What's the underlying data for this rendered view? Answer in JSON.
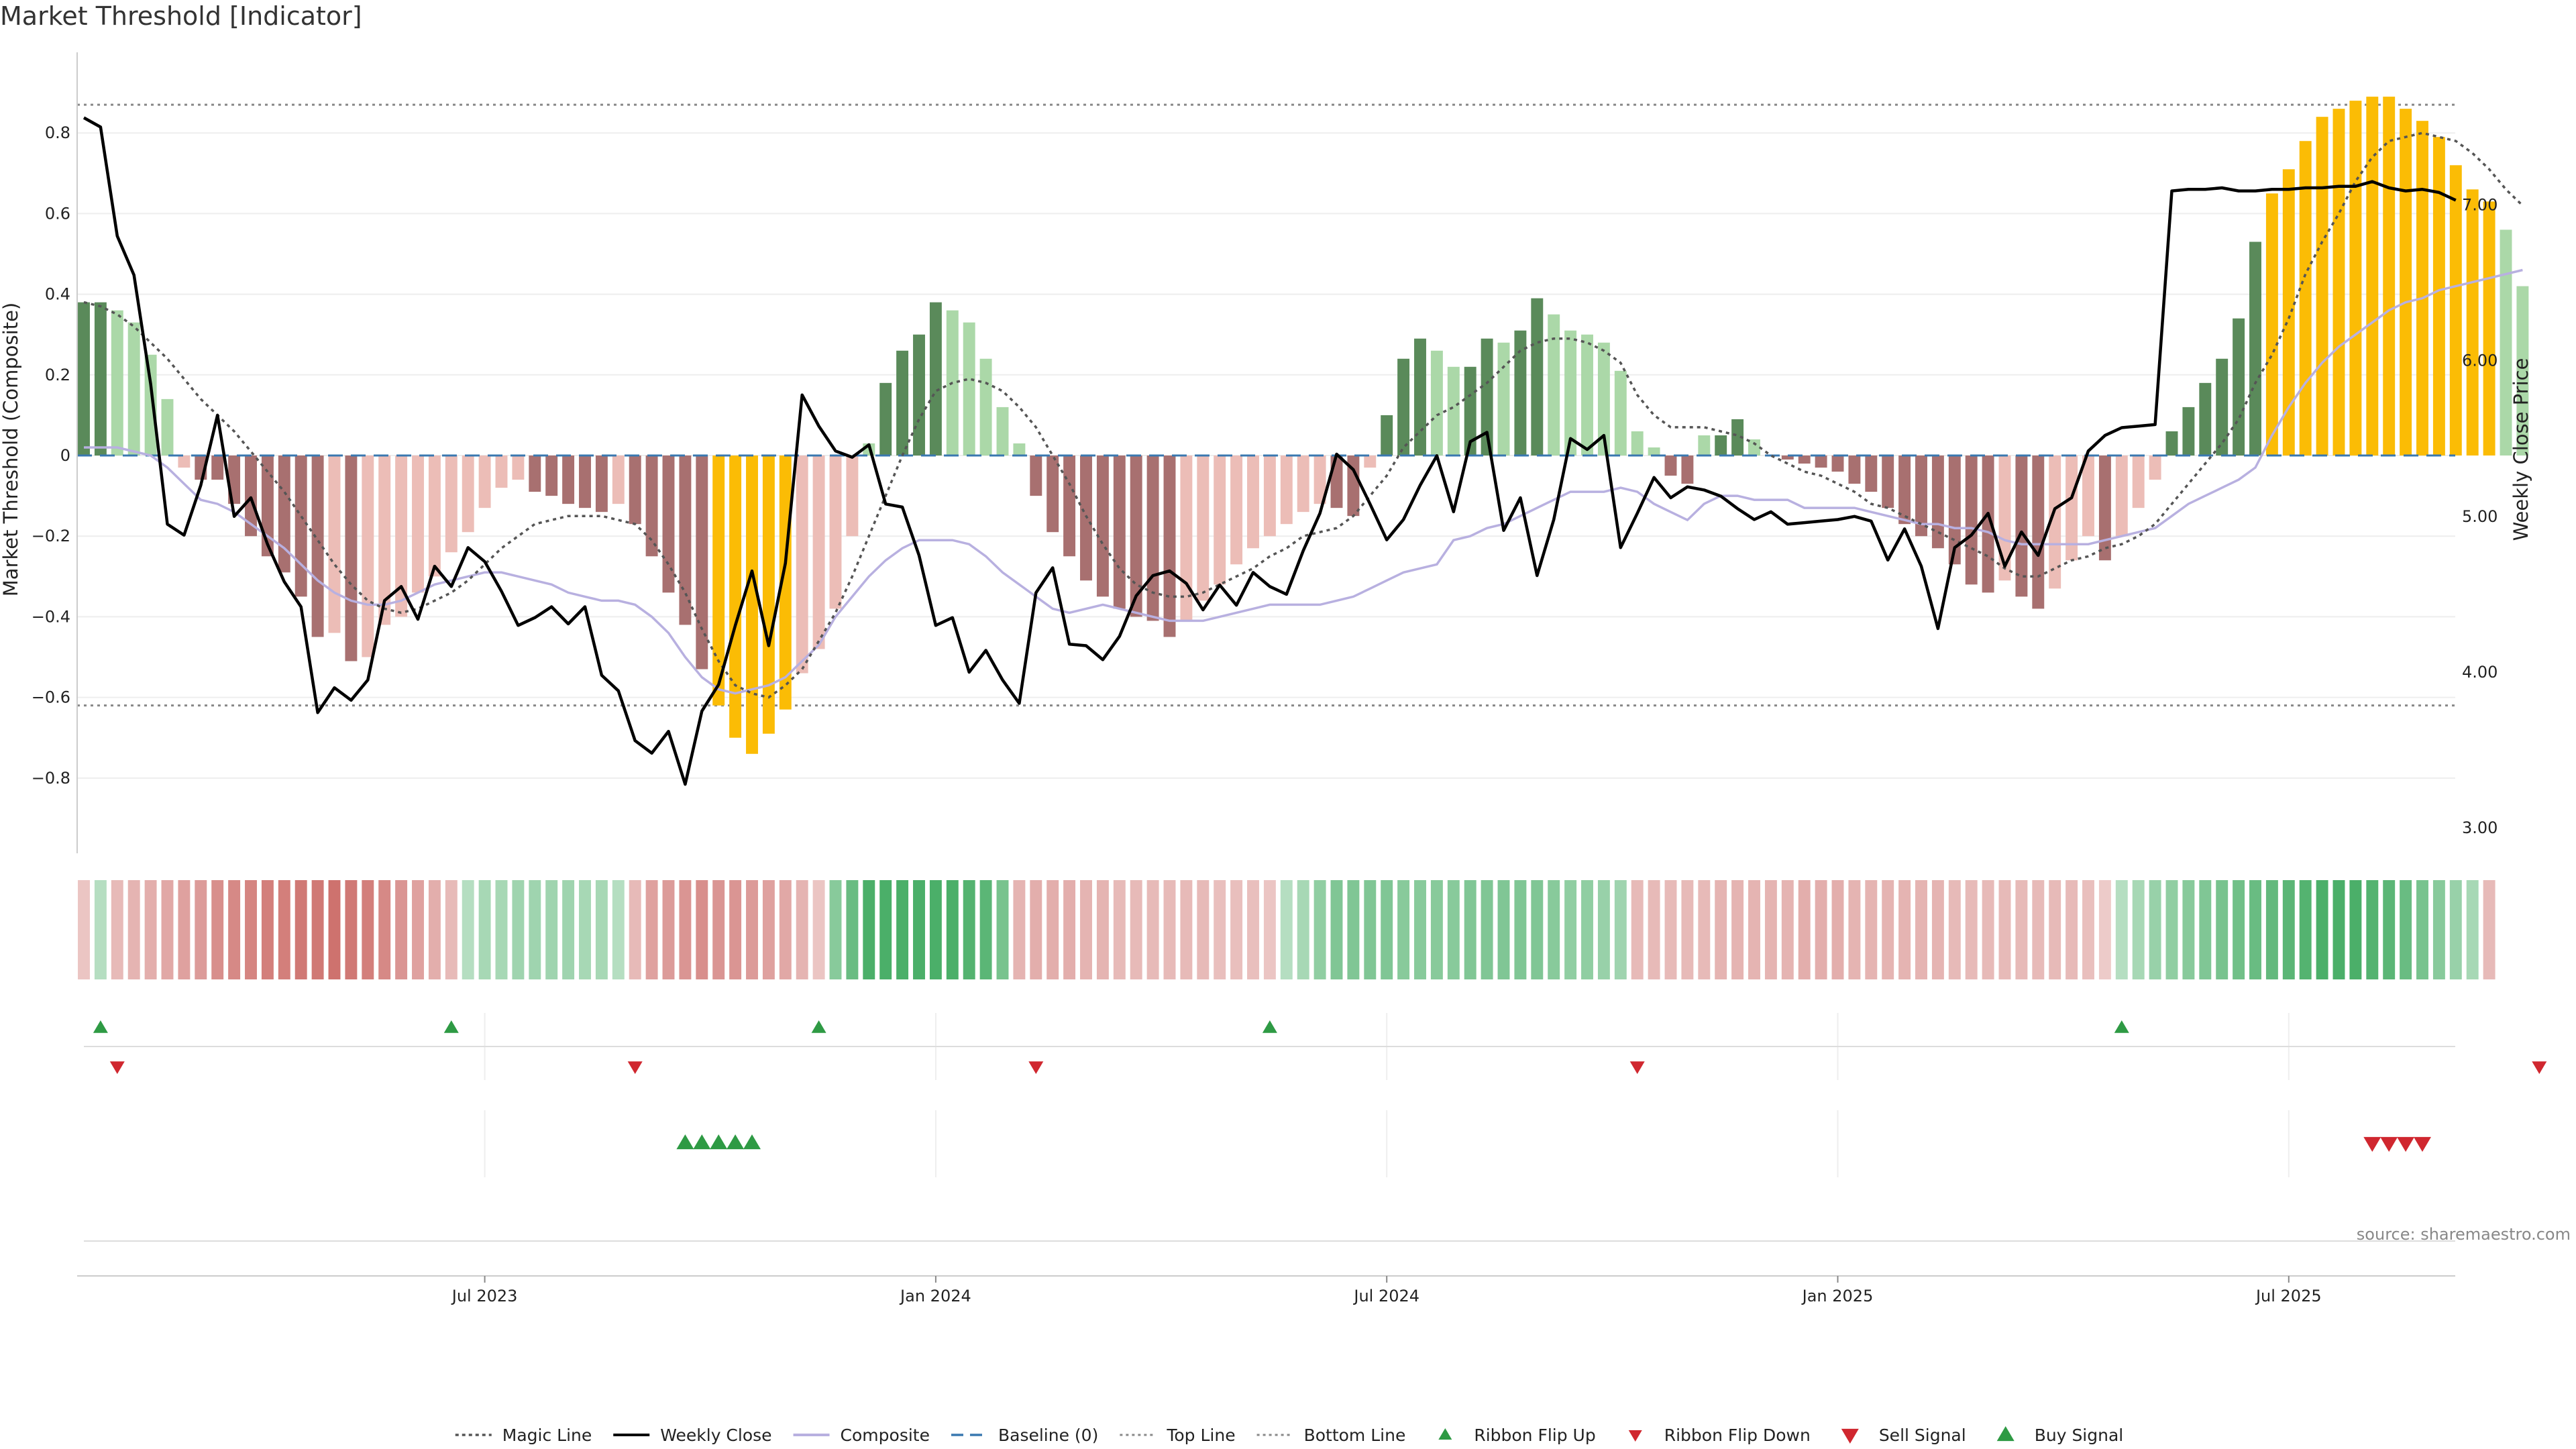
{
  "title": "Market Threshold [Indicator]",
  "source": "source: sharemaestro.com",
  "colors": {
    "bull_strong": "#5a8a5a",
    "bull_light": "#abd8a8",
    "bear_strong": "#a87070",
    "bear_light": "#ecbdb7",
    "extreme": "#fbbc05",
    "weekly_close": "#000000",
    "composite": "#b8b0e0",
    "magic": "#555555",
    "baseline": "#3a78b0",
    "threshold": "#888888",
    "ribbon_up": "#2e9a44",
    "ribbon_down": "#d0272f",
    "grid": "#eeeeee"
  },
  "chart_data": {
    "type": "bar",
    "y_left": {
      "label": "Market Threshold (Composite)",
      "ylim": [
        -0.97,
        1.0
      ],
      "ticks": [
        -0.8,
        -0.6,
        -0.4,
        -0.2,
        0,
        0.2,
        0.4,
        0.6,
        0.8
      ],
      "tick_labels": [
        "−0.8",
        "−0.6",
        "−0.4",
        "−0.2",
        "0",
        "0.2",
        "0.4",
        "0.6",
        "0.8"
      ]
    },
    "y_right": {
      "label": "Weekly Close Price",
      "ylim": [
        2.88,
        7.98
      ],
      "ticks": [
        3.0,
        4.0,
        5.0,
        6.0,
        7.0
      ],
      "tick_labels": [
        "3.00",
        "4.00",
        "5.00",
        "6.00",
        "7.00"
      ]
    },
    "x_axis": {
      "ticks": [
        "Jul 2023",
        "Jan 2024",
        "Jul 2024",
        "Jan 2025",
        "Jul 2025"
      ],
      "tick_weeks": [
        24,
        51,
        78,
        105,
        132
      ]
    },
    "top_line": 0.87,
    "bottom_line": -0.62,
    "baseline": 0,
    "composite_bars": [
      0.38,
      0.38,
      0.36,
      0.33,
      0.25,
      0.14,
      -0.03,
      -0.06,
      -0.06,
      -0.12,
      -0.2,
      -0.25,
      -0.29,
      -0.35,
      -0.45,
      -0.44,
      -0.51,
      -0.5,
      -0.42,
      -0.4,
      -0.34,
      -0.3,
      -0.24,
      -0.19,
      -0.13,
      -0.08,
      -0.06,
      -0.09,
      -0.1,
      -0.12,
      -0.13,
      -0.14,
      -0.12,
      -0.17,
      -0.25,
      -0.34,
      -0.42,
      -0.53,
      -0.62,
      -0.7,
      -0.74,
      -0.69,
      -0.63,
      -0.54,
      -0.48,
      -0.38,
      -0.2,
      0.03,
      0.18,
      0.26,
      0.3,
      0.38,
      0.36,
      0.33,
      0.24,
      0.12,
      0.03,
      -0.1,
      -0.19,
      -0.25,
      -0.31,
      -0.35,
      -0.38,
      -0.4,
      -0.41,
      -0.45,
      -0.41,
      -0.36,
      -0.32,
      -0.27,
      -0.23,
      -0.2,
      -0.17,
      -0.14,
      -0.12,
      -0.13,
      -0.15,
      -0.03,
      0.1,
      0.24,
      0.29,
      0.26,
      0.22,
      0.22,
      0.29,
      0.28,
      0.31,
      0.39,
      0.35,
      0.31,
      0.3,
      0.28,
      0.21,
      0.06,
      0.02,
      -0.05,
      -0.07,
      0.05,
      0.05,
      0.09,
      0.04,
      0.0,
      -0.01,
      -0.02,
      -0.03,
      -0.04,
      -0.07,
      -0.09,
      -0.13,
      -0.17,
      -0.2,
      -0.23,
      -0.27,
      -0.32,
      -0.34,
      -0.31,
      -0.35,
      -0.38,
      -0.33,
      -0.26,
      -0.2,
      -0.26,
      -0.2,
      -0.13,
      -0.06,
      0.06,
      0.12,
      0.18,
      0.24,
      0.34,
      0.53,
      0.65,
      0.71,
      0.78,
      0.84,
      0.86,
      0.88,
      0.89,
      0.89,
      0.86,
      0.83,
      0.79,
      0.72,
      0.66,
      0.63,
      0.56,
      0.42
    ],
    "weekly_close": [
      7.56,
      7.5,
      6.8,
      6.55,
      5.85,
      4.95,
      4.88,
      5.2,
      5.65,
      5.0,
      5.12,
      4.82,
      4.58,
      4.42,
      3.74,
      3.9,
      3.82,
      3.95,
      4.46,
      4.55,
      4.34,
      4.68,
      4.55,
      4.8,
      4.71,
      4.52,
      4.3,
      4.35,
      4.42,
      4.31,
      4.42,
      3.98,
      3.88,
      3.56,
      3.48,
      3.62,
      3.28,
      3.75,
      3.92,
      4.3,
      4.65,
      4.17,
      4.7,
      5.78,
      5.58,
      5.42,
      5.38,
      5.46,
      5.08,
      5.06,
      4.75,
      4.3,
      4.35,
      4.0,
      4.14,
      3.95,
      3.8,
      4.51,
      4.67,
      4.18,
      4.17,
      4.08,
      4.23,
      4.49,
      4.62,
      4.65,
      4.57,
      4.4,
      4.56,
      4.43,
      4.64,
      4.55,
      4.5,
      4.78,
      5.02,
      5.4,
      5.3,
      5.08,
      4.85,
      4.98,
      5.2,
      5.39,
      5.03,
      5.48,
      5.54,
      4.91,
      5.12,
      4.62,
      4.98,
      5.5,
      5.43,
      5.52,
      4.8,
      5.02,
      5.25,
      5.12,
      5.19,
      5.17,
      5.13,
      5.05,
      4.98,
      5.03,
      4.95,
      4.96,
      4.97,
      4.98,
      5.0,
      4.97,
      4.72,
      4.92,
      4.68,
      4.28,
      4.8,
      4.88,
      5.02,
      4.68,
      4.9,
      4.75,
      5.05,
      5.12,
      5.42,
      5.52,
      5.57,
      5.58,
      5.59,
      7.09,
      7.1,
      7.1,
      7.11,
      7.09,
      7.09,
      7.1,
      7.1,
      7.11,
      7.11,
      7.12,
      7.12,
      7.15,
      7.11,
      7.09,
      7.1,
      7.08,
      7.03
    ],
    "composite_line": [
      0.02,
      0.02,
      0.02,
      0.01,
      0.0,
      -0.03,
      -0.07,
      -0.11,
      -0.12,
      -0.14,
      -0.17,
      -0.2,
      -0.23,
      -0.27,
      -0.31,
      -0.34,
      -0.36,
      -0.37,
      -0.37,
      -0.36,
      -0.34,
      -0.32,
      -0.31,
      -0.3,
      -0.29,
      -0.29,
      -0.3,
      -0.31,
      -0.32,
      -0.34,
      -0.35,
      -0.36,
      -0.36,
      -0.37,
      -0.4,
      -0.44,
      -0.5,
      -0.55,
      -0.58,
      -0.59,
      -0.58,
      -0.57,
      -0.55,
      -0.51,
      -0.47,
      -0.4,
      -0.35,
      -0.3,
      -0.26,
      -0.23,
      -0.21,
      -0.21,
      -0.21,
      -0.22,
      -0.25,
      -0.29,
      -0.32,
      -0.35,
      -0.38,
      -0.39,
      -0.38,
      -0.37,
      -0.38,
      -0.39,
      -0.4,
      -0.41,
      -0.41,
      -0.41,
      -0.4,
      -0.39,
      -0.38,
      -0.37,
      -0.37,
      -0.37,
      -0.37,
      -0.36,
      -0.35,
      -0.33,
      -0.31,
      -0.29,
      -0.28,
      -0.27,
      -0.21,
      -0.2,
      -0.18,
      -0.17,
      -0.15,
      -0.13,
      -0.11,
      -0.09,
      -0.09,
      -0.09,
      -0.08,
      -0.09,
      -0.12,
      -0.14,
      -0.16,
      -0.12,
      -0.1,
      -0.1,
      -0.11,
      -0.11,
      -0.11,
      -0.13,
      -0.13,
      -0.13,
      -0.13,
      -0.14,
      -0.15,
      -0.16,
      -0.17,
      -0.17,
      -0.18,
      -0.18,
      -0.19,
      -0.21,
      -0.22,
      -0.22,
      -0.22,
      -0.22,
      -0.22,
      -0.21,
      -0.2,
      -0.19,
      -0.18,
      -0.15,
      -0.12,
      -0.1,
      -0.08,
      -0.06,
      -0.03,
      0.05,
      0.12,
      0.18,
      0.23,
      0.27,
      0.3,
      0.33,
      0.36,
      0.38,
      0.39,
      0.41,
      0.42,
      0.43,
      0.44,
      0.45,
      0.46
    ],
    "magic_line": [
      0.38,
      0.37,
      0.35,
      0.32,
      0.28,
      0.24,
      0.19,
      0.14,
      0.1,
      0.06,
      0.01,
      -0.04,
      -0.09,
      -0.15,
      -0.21,
      -0.27,
      -0.32,
      -0.36,
      -0.38,
      -0.39,
      -0.38,
      -0.36,
      -0.34,
      -0.31,
      -0.27,
      -0.23,
      -0.2,
      -0.17,
      -0.16,
      -0.15,
      -0.15,
      -0.15,
      -0.16,
      -0.17,
      -0.21,
      -0.27,
      -0.34,
      -0.43,
      -0.51,
      -0.57,
      -0.59,
      -0.6,
      -0.57,
      -0.53,
      -0.46,
      -0.39,
      -0.3,
      -0.2,
      -0.1,
      0.0,
      0.09,
      0.16,
      0.18,
      0.19,
      0.18,
      0.16,
      0.12,
      0.07,
      0.0,
      -0.07,
      -0.15,
      -0.22,
      -0.28,
      -0.32,
      -0.34,
      -0.35,
      -0.35,
      -0.34,
      -0.32,
      -0.3,
      -0.28,
      -0.25,
      -0.23,
      -0.2,
      -0.19,
      -0.18,
      -0.15,
      -0.1,
      -0.05,
      0.02,
      0.06,
      0.1,
      0.12,
      0.15,
      0.18,
      0.22,
      0.26,
      0.28,
      0.29,
      0.29,
      0.28,
      0.26,
      0.23,
      0.15,
      0.1,
      0.07,
      0.07,
      0.07,
      0.06,
      0.05,
      0.03,
      0.0,
      -0.02,
      -0.04,
      -0.05,
      -0.07,
      -0.09,
      -0.12,
      -0.13,
      -0.15,
      -0.17,
      -0.19,
      -0.21,
      -0.23,
      -0.25,
      -0.28,
      -0.3,
      -0.3,
      -0.28,
      -0.26,
      -0.25,
      -0.23,
      -0.22,
      -0.2,
      -0.17,
      -0.12,
      -0.07,
      -0.02,
      0.03,
      0.09,
      0.18,
      0.25,
      0.34,
      0.45,
      0.53,
      0.6,
      0.68,
      0.74,
      0.78,
      0.79,
      0.8,
      0.79,
      0.78,
      0.75,
      0.71,
      0.66,
      0.62
    ],
    "ribbon_values": [
      -0.2,
      0.2,
      -0.3,
      -0.35,
      -0.4,
      -0.45,
      -0.5,
      -0.55,
      -0.65,
      -0.7,
      -0.75,
      -0.8,
      -0.8,
      -0.85,
      -0.85,
      -0.9,
      -0.85,
      -0.8,
      -0.7,
      -0.6,
      -0.5,
      -0.4,
      -0.3,
      0.2,
      0.3,
      0.3,
      0.35,
      0.35,
      0.35,
      0.35,
      0.3,
      0.3,
      0.2,
      -0.3,
      -0.5,
      -0.55,
      -0.6,
      -0.65,
      -0.6,
      -0.6,
      -0.55,
      -0.5,
      -0.45,
      -0.35,
      -0.2,
      0.5,
      0.7,
      0.9,
      0.9,
      0.9,
      0.9,
      0.9,
      0.9,
      0.85,
      0.8,
      0.6,
      -0.35,
      -0.4,
      -0.4,
      -0.4,
      -0.35,
      -0.35,
      -0.3,
      -0.3,
      -0.3,
      -0.3,
      -0.3,
      -0.3,
      -0.25,
      -0.25,
      -0.25,
      -0.2,
      0.2,
      0.3,
      0.45,
      0.55,
      0.55,
      0.55,
      0.55,
      0.5,
      0.5,
      0.5,
      0.5,
      0.55,
      0.55,
      0.55,
      0.55,
      0.55,
      0.5,
      0.45,
      0.45,
      0.4,
      0.35,
      -0.3,
      -0.3,
      -0.3,
      -0.3,
      -0.3,
      -0.35,
      -0.35,
      -0.35,
      -0.35,
      -0.35,
      -0.4,
      -0.4,
      -0.4,
      -0.35,
      -0.35,
      -0.35,
      -0.35,
      -0.35,
      -0.35,
      -0.3,
      -0.3,
      -0.3,
      -0.3,
      -0.3,
      -0.3,
      -0.3,
      -0.3,
      -0.25,
      -0.15,
      0.2,
      0.3,
      0.4,
      0.45,
      0.5,
      0.55,
      0.6,
      0.65,
      0.7,
      0.75,
      0.8,
      0.85,
      0.9,
      0.9,
      0.9,
      0.85,
      0.8,
      0.7,
      0.6,
      0.5,
      0.4,
      0.3,
      -0.3
    ],
    "ribbon_flip_up_weeks": [
      1,
      22,
      44,
      71,
      122
    ],
    "ribbon_flip_down_weeks": [
      2,
      33,
      57,
      93,
      147
    ],
    "buy_signal_weeks": [
      36,
      37,
      38,
      39,
      40
    ],
    "sell_signal_weeks": [
      137,
      138,
      139,
      140
    ],
    "legend": [
      {
        "label": "Magic Line",
        "style": "dotted-dark"
      },
      {
        "label": "Weekly Close",
        "style": "solid-black"
      },
      {
        "label": "Composite",
        "style": "solid-lavender"
      },
      {
        "label": "Baseline (0)",
        "style": "dashed-blue"
      },
      {
        "label": "Top Line",
        "style": "dotted-grey"
      },
      {
        "label": "Bottom Line",
        "style": "dotted-grey"
      },
      {
        "label": "Ribbon Flip Up",
        "style": "triangle-up-green"
      },
      {
        "label": "Ribbon Flip Down",
        "style": "triangle-down-red"
      },
      {
        "label": "Sell Signal",
        "style": "triangle-down-red-large"
      },
      {
        "label": "Buy Signal",
        "style": "triangle-up-green-large"
      }
    ]
  }
}
